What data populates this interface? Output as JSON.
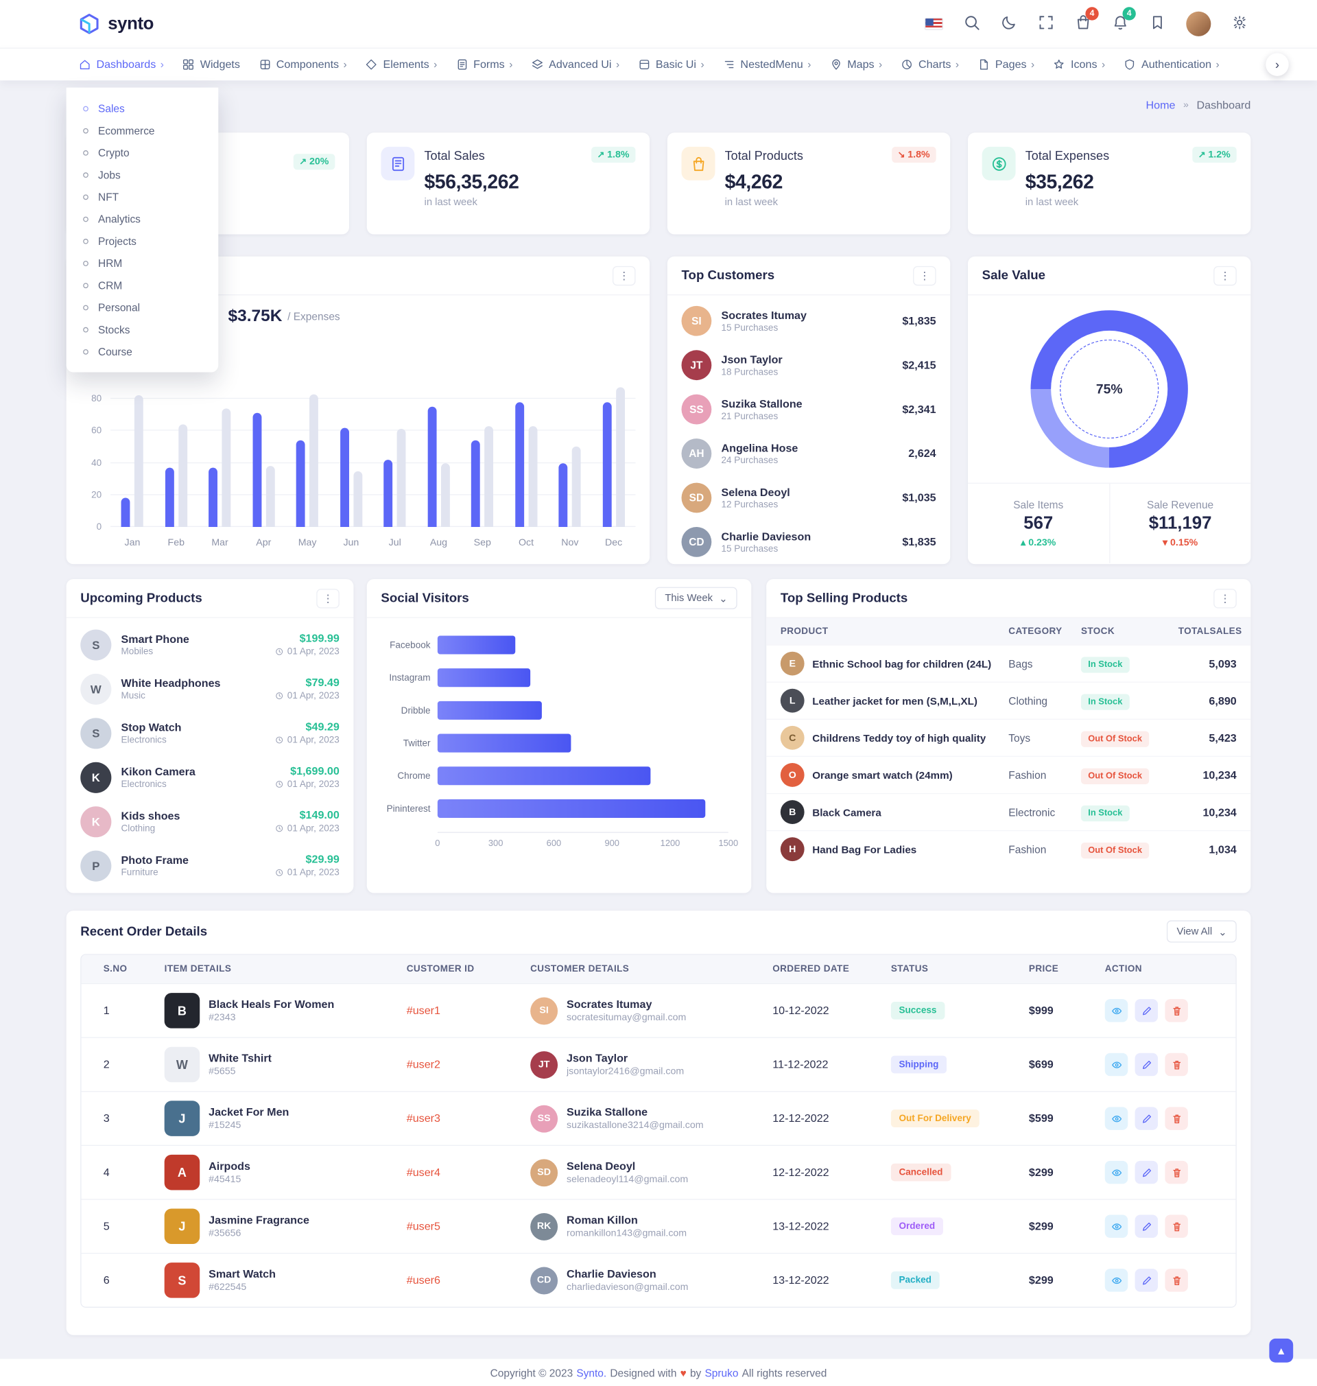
{
  "theme": {
    "primary": "#5c67f7",
    "success": "#26bf94",
    "danger": "#e6533c",
    "warning": "#f5a623"
  },
  "icons": {
    "kebab": "⋮",
    "chevron_right": "›",
    "chevron_down": "⌄",
    "breadcrumb_sep": "»",
    "scroll_top": "▲"
  },
  "header_icon_names": [
    "us-flag-icon",
    "search-icon",
    "moon-icon",
    "fullscreen-icon",
    "cart-icon",
    "bell-icon",
    "bookmark-icon",
    "avatar",
    "gear-icon"
  ],
  "brand": {
    "name": "synto"
  },
  "header": {
    "cart_badge": "4",
    "bell_badge": "4"
  },
  "nav": {
    "items": [
      {
        "label": "Dashboards",
        "icon": "home-icon",
        "state": "active",
        "chevron": "has-chevron"
      },
      {
        "label": "Widgets",
        "icon": "widgets-icon",
        "chevron": ""
      },
      {
        "label": "Components",
        "icon": "components-icon",
        "chevron": "has-chevron"
      },
      {
        "label": "Elements",
        "icon": "elements-icon",
        "chevron": "has-chevron"
      },
      {
        "label": "Forms",
        "icon": "forms-icon",
        "chevron": "has-chevron"
      },
      {
        "label": "Advanced Ui",
        "icon": "advanced-ui-icon",
        "chevron": "has-chevron"
      },
      {
        "label": "Basic Ui",
        "icon": "basic-ui-icon",
        "chevron": "has-chevron"
      },
      {
        "label": "NestedMenu",
        "icon": "nested-menu-icon",
        "chevron": "has-chevron"
      },
      {
        "label": "Maps",
        "icon": "maps-icon",
        "chevron": "has-chevron"
      },
      {
        "label": "Charts",
        "icon": "charts-icon",
        "chevron": "has-chevron"
      },
      {
        "label": "Pages",
        "icon": "pages-icon",
        "chevron": "has-chevron"
      },
      {
        "label": "Icons",
        "icon": "icons-icon",
        "chevron": "has-chevron"
      },
      {
        "label": "Authentication",
        "icon": "authentication-icon",
        "chevron": "has-chevron"
      }
    ]
  },
  "dashboards_menu": {
    "items": [
      {
        "label": "Sales",
        "state": "active"
      },
      {
        "label": "Ecommerce"
      },
      {
        "label": "Crypto"
      },
      {
        "label": "Jobs"
      },
      {
        "label": "NFT"
      },
      {
        "label": "Analytics"
      },
      {
        "label": "Projects"
      },
      {
        "label": "HRM"
      },
      {
        "label": "CRM"
      },
      {
        "label": "Personal"
      },
      {
        "label": "Stocks"
      },
      {
        "label": "Course"
      }
    ]
  },
  "breadcrumb": {
    "home": "Home",
    "current": "Dashboard"
  },
  "stats": {
    "card1": {
      "arrow": "↗",
      "delta": "20%"
    },
    "cards": [
      {
        "title": "Total Sales",
        "value": "$56,35,262",
        "period": "in last week",
        "arrow": "↗",
        "delta": "1.8%",
        "trend": "up",
        "icon": "invoice-icon",
        "icon_style": "indigo"
      },
      {
        "title": "Total Products",
        "value": "$4,262",
        "period": "in last week",
        "arrow": "↘",
        "delta": "1.8%",
        "trend": "down",
        "icon": "bag-icon",
        "icon_style": "orange"
      },
      {
        "title": "Total Expenses",
        "value": "$35,262",
        "period": "in last week",
        "arrow": "↗",
        "delta": "1.2%",
        "trend": "up",
        "icon": "dollar-icon",
        "icon_style": "green"
      }
    ]
  },
  "overview": {
    "stat_value": "$3.75K",
    "stat_label": "/ Expenses"
  },
  "top_customers": {
    "title": "Top Customers",
    "items": [
      {
        "name": "Socrates Itumay",
        "purchases": "15 Purchases",
        "amount": "$1,835",
        "initials": "SI",
        "avatar_bg": "#e8b48c"
      },
      {
        "name": "Json Taylor",
        "purchases": "18 Purchases",
        "amount": "$2,415",
        "initials": "JT",
        "avatar_bg": "#a63d4c"
      },
      {
        "name": "Suzika Stallone",
        "purchases": "21 Purchases",
        "amount": "$2,341",
        "initials": "SS",
        "avatar_bg": "#e8a0b8"
      },
      {
        "name": "Angelina Hose",
        "purchases": "24 Purchases",
        "amount": "2,624",
        "initials": "AH",
        "avatar_bg": "#b4bac7"
      },
      {
        "name": "Selena Deoyl",
        "purchases": "12 Purchases",
        "amount": "$1,035",
        "initials": "SD",
        "avatar_bg": "#d8a87c"
      },
      {
        "name": "Charlie Davieson",
        "purchases": "15 Purchases",
        "amount": "$1,835",
        "initials": "CD",
        "avatar_bg": "#8d99ae"
      }
    ]
  },
  "sale_value": {
    "title": "Sale Value",
    "percent_label": "75%",
    "items_label": "Sale Items",
    "items_value": "567",
    "items_arrow": "▴",
    "items_delta": "0.23%",
    "revenue_label": "Sale Revenue",
    "revenue_value": "$11,197",
    "revenue_arrow": "▾",
    "revenue_delta": "0.15%"
  },
  "upcoming": {
    "title": "Upcoming Products",
    "items": [
      {
        "name": "Smart Phone",
        "category": "Mobiles",
        "price": "$199.99",
        "date": "01 Apr, 2023",
        "initial": "S",
        "thumb_bg": "#d8dce8",
        "thumb_fg": "#5b6270"
      },
      {
        "name": "White Headphones",
        "category": "Music",
        "price": "$79.49",
        "date": "01 Apr, 2023",
        "initial": "W",
        "thumb_bg": "#eceef3",
        "thumb_fg": "#5b6270"
      },
      {
        "name": "Stop Watch",
        "category": "Electronics",
        "price": "$49.29",
        "date": "01 Apr, 2023",
        "initial": "S",
        "thumb_bg": "#cdd4e0",
        "thumb_fg": "#5b6270"
      },
      {
        "name": "Kikon Camera",
        "category": "Electronics",
        "price": "$1,699.00",
        "date": "01 Apr, 2023",
        "initial": "K",
        "thumb_bg": "#3b3f4a",
        "thumb_fg": "#ffffff"
      },
      {
        "name": "Kids shoes",
        "category": "Clothing",
        "price": "$149.00",
        "date": "01 Apr, 2023",
        "initial": "K",
        "thumb_bg": "#e7b9c7",
        "thumb_fg": "#ffffff"
      },
      {
        "name": "Photo Frame",
        "category": "Furniture",
        "price": "$29.99",
        "date": "01 Apr, 2023",
        "initial": "P",
        "thumb_bg": "#cfd6e2",
        "thumb_fg": "#5b6270"
      }
    ]
  },
  "social": {
    "title": "Social Visitors",
    "range": "This Week"
  },
  "top_selling": {
    "title": "Top Selling Products",
    "columns": [
      "PRODUCT",
      "CATEGORY",
      "STOCK",
      "TOTALSALES"
    ],
    "items": [
      {
        "product": "Ethnic School bag for children (24L)",
        "category": "Bags",
        "stock": "In Stock",
        "stock_class": "in",
        "total": "5,093",
        "initial": "E",
        "thumb_bg": "#c89a6b",
        "thumb_fg": "#ffffff"
      },
      {
        "product": "Leather jacket for men (S,M,L,XL)",
        "category": "Clothing",
        "stock": "In Stock",
        "stock_class": "in",
        "total": "6,890",
        "initial": "L",
        "thumb_bg": "#4b4e57",
        "thumb_fg": "#ffffff"
      },
      {
        "product": "Childrens Teddy toy of high quality",
        "category": "Toys",
        "stock": "Out Of Stock",
        "stock_class": "out",
        "total": "5,423",
        "initial": "C",
        "thumb_bg": "#e9c79a",
        "thumb_fg": "#7a5c32"
      },
      {
        "product": "Orange smart watch (24mm)",
        "category": "Fashion",
        "stock": "Out Of Stock",
        "stock_class": "out",
        "total": "10,234",
        "initial": "O",
        "thumb_bg": "#e2603f",
        "thumb_fg": "#ffffff"
      },
      {
        "product": "Black Camera",
        "category": "Electronic",
        "stock": "In Stock",
        "stock_class": "in",
        "total": "10,234",
        "initial": "B",
        "thumb_bg": "#2f3138",
        "thumb_fg": "#ffffff"
      },
      {
        "product": "Hand Bag For Ladies",
        "category": "Fashion",
        "stock": "Out Of Stock",
        "stock_class": "out",
        "total": "1,034",
        "initial": "H",
        "thumb_bg": "#8a3b3b",
        "thumb_fg": "#ffffff"
      }
    ]
  },
  "orders": {
    "title": "Recent Order Details",
    "view_all": "View All",
    "columns": [
      "S.NO",
      "ITEM DETAILS",
      "CUSTOMER ID",
      "CUSTOMER DETAILS",
      "ORDERED DATE",
      "STATUS",
      "PRICE",
      "ACTION"
    ],
    "rows": [
      {
        "sno": "1",
        "item": "Black Heals For Women",
        "item_id": "#2343",
        "cid": "#user1",
        "customer": "Socrates Itumay",
        "email": "socratesitumay@gmail.com",
        "date": "10-12-2022",
        "status": "Success",
        "status_class": "success",
        "price": "$999",
        "initial": "B",
        "thumb_bg": "#23262e",
        "thumb_fg": "#ffffff",
        "avatar_initials": "SI",
        "avatar_bg": "#e8b48c"
      },
      {
        "sno": "2",
        "item": "White Tshirt",
        "item_id": "#5655",
        "cid": "#user2",
        "customer": "Json Taylor",
        "email": "jsontaylor2416@gmail.com",
        "date": "11-12-2022",
        "status": "Shipping",
        "status_class": "shipping",
        "price": "$699",
        "initial": "W",
        "thumb_bg": "#eceef3",
        "thumb_fg": "#5b6270",
        "avatar_initials": "JT",
        "avatar_bg": "#a63d4c"
      },
      {
        "sno": "3",
        "item": "Jacket For Men",
        "item_id": "#15245",
        "cid": "#user3",
        "customer": "Suzika Stallone",
        "email": "suzikastallone3214@gmail.com",
        "date": "12-12-2022",
        "status": "Out For Delivery",
        "status_class": "delivery",
        "price": "$599",
        "initial": "J",
        "thumb_bg": "#49708e",
        "thumb_fg": "#ffffff",
        "avatar_initials": "SS",
        "avatar_bg": "#e8a0b8"
      },
      {
        "sno": "4",
        "item": "Airpods",
        "item_id": "#45415",
        "cid": "#user4",
        "customer": "Selena Deoyl",
        "email": "selenadeoyl114@gmail.com",
        "date": "12-12-2022",
        "status": "Cancelled",
        "status_class": "cancelled",
        "price": "$299",
        "initial": "A",
        "thumb_bg": "#c03a2b",
        "thumb_fg": "#ffffff",
        "avatar_initials": "SD",
        "avatar_bg": "#d8a87c"
      },
      {
        "sno": "5",
        "item": "Jasmine Fragrance",
        "item_id": "#35656",
        "cid": "#user5",
        "customer": "Roman Killon",
        "email": "romankillon143@gmail.com",
        "date": "13-12-2022",
        "status": "Ordered",
        "status_class": "ordered",
        "price": "$299",
        "initial": "J",
        "thumb_bg": "#d9992b",
        "thumb_fg": "#ffffff",
        "avatar_initials": "RK",
        "avatar_bg": "#7d8a97"
      },
      {
        "sno": "6",
        "item": "Smart Watch",
        "item_id": "#622545",
        "cid": "#user6",
        "customer": "Charlie Davieson",
        "email": "charliedavieson@gmail.com",
        "date": "13-12-2022",
        "status": "Packed",
        "status_class": "packed",
        "price": "$299",
        "initial": "S",
        "thumb_bg": "#d14836",
        "thumb_fg": "#ffffff",
        "avatar_initials": "CD",
        "avatar_bg": "#8d99ae"
      }
    ]
  },
  "footer": {
    "copyright": "Copyright © 2023",
    "brand": "Synto.",
    "designed": "Designed with",
    "heart": "♥",
    "by": "by",
    "designer": "Spruko",
    "rights": "All rights reserved"
  },
  "chart_data": [
    {
      "type": "bar",
      "name": "monthly-overview",
      "title": "",
      "categories": [
        "Jan",
        "Feb",
        "Mar",
        "Apr",
        "May",
        "Jun",
        "Jul",
        "Aug",
        "Sep",
        "Oct",
        "Nov",
        "Dec"
      ],
      "series": [
        {
          "name": "Primary",
          "color": "#5c67f7",
          "values": [
            18,
            37,
            37,
            71,
            54,
            62,
            42,
            75,
            54,
            78,
            40,
            78
          ]
        },
        {
          "name": "Secondary",
          "color": "#e1e4f0",
          "values": [
            82,
            64,
            74,
            38,
            83,
            35,
            61,
            40,
            63,
            63,
            50,
            87
          ]
        }
      ],
      "ylim": [
        0,
        88
      ],
      "yticks": [
        0,
        20,
        40,
        60,
        80
      ],
      "grid": true,
      "visible_stat": "$3.75K / Expenses"
    },
    {
      "type": "bar",
      "name": "social-visitors",
      "orientation": "horizontal",
      "categories": [
        "Facebook",
        "Instagram",
        "Dribble",
        "Twitter",
        "Chrome",
        "Pininterest"
      ],
      "values": [
        400,
        480,
        540,
        690,
        1100,
        1380
      ],
      "xlim": [
        0,
        1500
      ],
      "xticks": [
        0,
        300,
        600,
        900,
        1200,
        1500
      ],
      "bar_gradient": [
        "#7b83f9",
        "#4a56f2"
      ]
    },
    {
      "type": "pie",
      "name": "sale-value",
      "percent": 75,
      "label": "75%",
      "colors": [
        "#5c67f7",
        "#97a0fb"
      ]
    }
  ]
}
